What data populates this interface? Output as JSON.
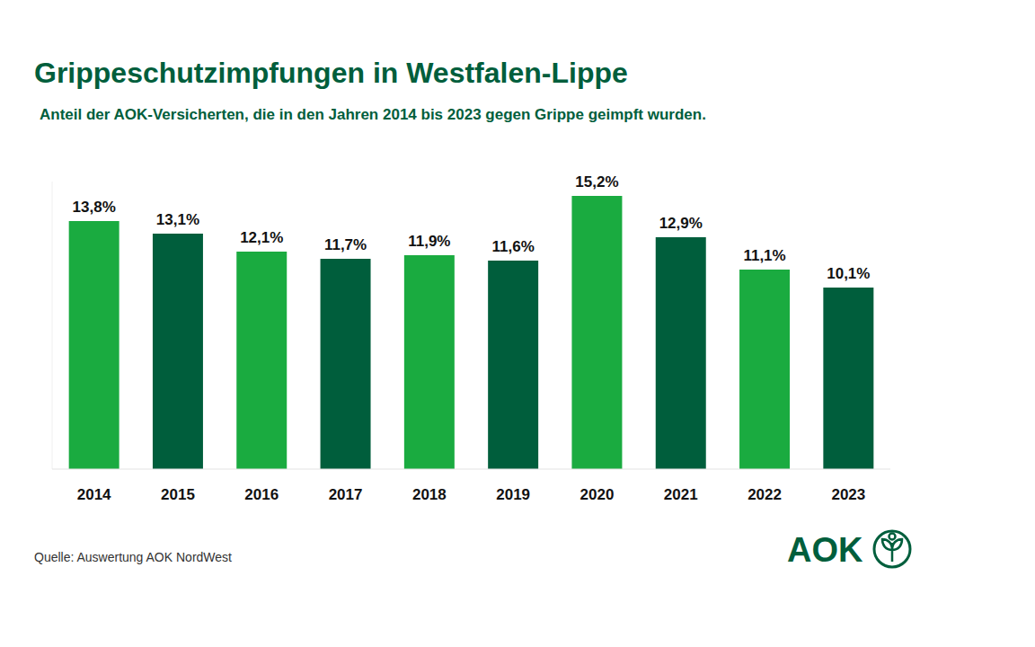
{
  "chart_data": {
    "type": "bar",
    "title": "Grippeschutzimpfungen in Westfalen-Lippe",
    "subtitle": "Anteil der AOK-Versicherten, die in den Jahren 2014 bis 2023 gegen Grippe geimpft wurden.",
    "categories": [
      "2014",
      "2015",
      "2016",
      "2017",
      "2018",
      "2019",
      "2020",
      "2021",
      "2022",
      "2023"
    ],
    "values": [
      13.8,
      13.1,
      12.1,
      11.7,
      11.9,
      11.6,
      15.2,
      12.9,
      11.1,
      10.1
    ],
    "value_labels": [
      "13,8%",
      "13,1%",
      "12,1%",
      "11,7%",
      "11,9%",
      "11,6%",
      "15,2%",
      "12,9%",
      "11,1%",
      "10,1%"
    ],
    "colors": [
      "#1aab40",
      "#005e3c",
      "#1aab40",
      "#005e3c",
      "#1aab40",
      "#005e3c",
      "#1aab40",
      "#005e3c",
      "#1aab40",
      "#005e3c"
    ],
    "ylim": [
      0,
      16
    ],
    "grid": false,
    "data_labels": true,
    "tick_labels": "x",
    "source": "Quelle: Auswertung AOK NordWest",
    "logo": "AOK"
  }
}
